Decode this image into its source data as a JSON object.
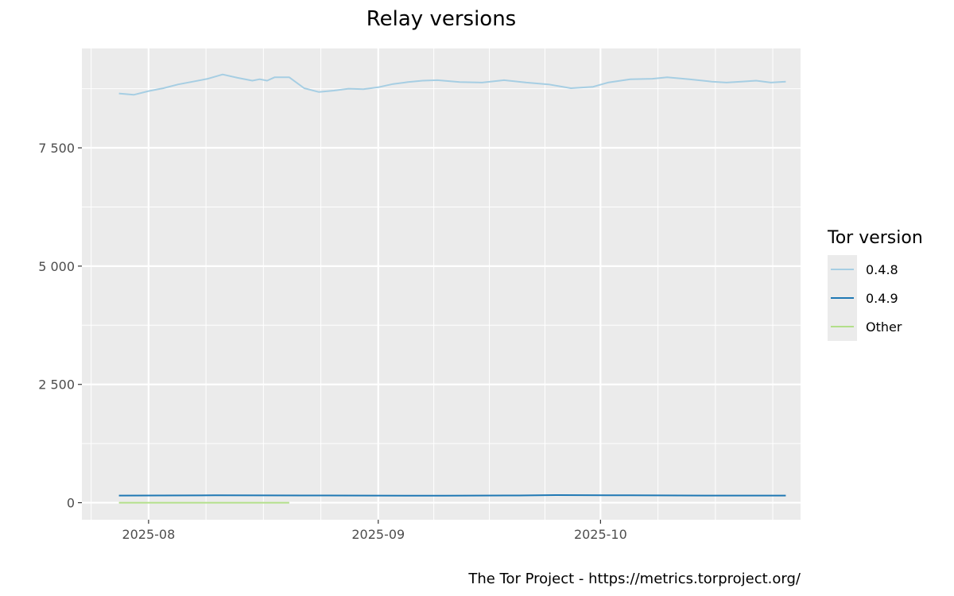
{
  "chart_data": {
    "type": "line",
    "title": "Relay versions",
    "xlabel": "",
    "ylabel": "",
    "ylim": [
      -360,
      9600
    ],
    "yticks": [
      0,
      2500,
      5000,
      7500
    ],
    "ytick_labels": [
      "0",
      "2 500",
      "5 000",
      "7 500"
    ],
    "xlim": [
      "2025-07-23",
      "2025-10-28"
    ],
    "xticks": [
      "2025-08-01",
      "2025-09-01",
      "2025-10-01"
    ],
    "xtick_labels": [
      "2025-08",
      "2025-09",
      "2025-10"
    ],
    "grid": true,
    "legend": {
      "title": "Tor version",
      "position": "right"
    },
    "caption": "The Tor Project - https://metrics.torproject.org/",
    "series": [
      {
        "name": "0.4.8",
        "color": "#a6cee3",
        "points": [
          [
            "2025-07-28",
            8650
          ],
          [
            "2025-07-30",
            8620
          ],
          [
            "2025-08-01",
            8700
          ],
          [
            "2025-08-03",
            8760
          ],
          [
            "2025-08-05",
            8840
          ],
          [
            "2025-08-07",
            8900
          ],
          [
            "2025-08-09",
            8960
          ],
          [
            "2025-08-11",
            9050
          ],
          [
            "2025-08-13",
            8980
          ],
          [
            "2025-08-15",
            8920
          ],
          [
            "2025-08-16",
            8950
          ],
          [
            "2025-08-17",
            8920
          ],
          [
            "2025-08-18",
            8990
          ],
          [
            "2025-08-20",
            8990
          ],
          [
            "2025-08-22",
            8760
          ],
          [
            "2025-08-24",
            8680
          ],
          [
            "2025-08-26",
            8710
          ],
          [
            "2025-08-28",
            8750
          ],
          [
            "2025-08-30",
            8740
          ],
          [
            "2025-09-01",
            8780
          ],
          [
            "2025-09-03",
            8850
          ],
          [
            "2025-09-05",
            8890
          ],
          [
            "2025-09-07",
            8920
          ],
          [
            "2025-09-09",
            8930
          ],
          [
            "2025-09-12",
            8890
          ],
          [
            "2025-09-15",
            8880
          ],
          [
            "2025-09-18",
            8930
          ],
          [
            "2025-09-21",
            8880
          ],
          [
            "2025-09-24",
            8840
          ],
          [
            "2025-09-27",
            8760
          ],
          [
            "2025-09-30",
            8790
          ],
          [
            "2025-10-02",
            8880
          ],
          [
            "2025-10-05",
            8950
          ],
          [
            "2025-10-08",
            8960
          ],
          [
            "2025-10-10",
            8990
          ],
          [
            "2025-10-13",
            8950
          ],
          [
            "2025-10-16",
            8900
          ],
          [
            "2025-10-18",
            8880
          ],
          [
            "2025-10-20",
            8900
          ],
          [
            "2025-10-22",
            8920
          ],
          [
            "2025-10-24",
            8880
          ],
          [
            "2025-10-26",
            8900
          ]
        ]
      },
      {
        "name": "0.4.9",
        "color": "#1f78b4",
        "points": [
          [
            "2025-07-28",
            150
          ],
          [
            "2025-08-10",
            155
          ],
          [
            "2025-08-25",
            152
          ],
          [
            "2025-09-10",
            148
          ],
          [
            "2025-09-20",
            152
          ],
          [
            "2025-09-25",
            160
          ],
          [
            "2025-10-05",
            155
          ],
          [
            "2025-10-15",
            150
          ],
          [
            "2025-10-26",
            150
          ]
        ]
      },
      {
        "name": "Other",
        "color": "#b2df8a",
        "points": [
          [
            "2025-07-28",
            0
          ],
          [
            "2025-08-10",
            0
          ],
          [
            "2025-08-20",
            0
          ]
        ]
      }
    ]
  }
}
